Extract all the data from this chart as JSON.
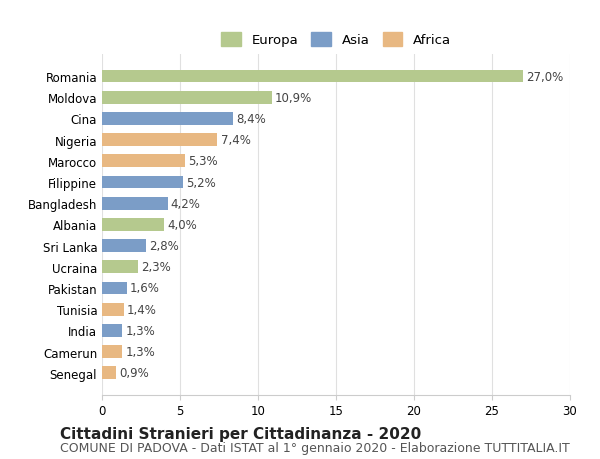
{
  "countries": [
    "Romania",
    "Moldova",
    "Cina",
    "Nigeria",
    "Marocco",
    "Filippine",
    "Bangladesh",
    "Albania",
    "Sri Lanka",
    "Ucraina",
    "Pakistan",
    "Tunisia",
    "India",
    "Camerun",
    "Senegal"
  ],
  "values": [
    27.0,
    10.9,
    8.4,
    7.4,
    5.3,
    5.2,
    4.2,
    4.0,
    2.8,
    2.3,
    1.6,
    1.4,
    1.3,
    1.3,
    0.9
  ],
  "continents": [
    "Europa",
    "Europa",
    "Asia",
    "Africa",
    "Africa",
    "Asia",
    "Asia",
    "Europa",
    "Asia",
    "Europa",
    "Asia",
    "Africa",
    "Asia",
    "Africa",
    "Africa"
  ],
  "colors": {
    "Europa": "#b5c98e",
    "Asia": "#7b9dc7",
    "Africa": "#e8b882"
  },
  "legend_order": [
    "Europa",
    "Asia",
    "Africa"
  ],
  "xlim": [
    0,
    30
  ],
  "xticks": [
    0,
    5,
    10,
    15,
    20,
    25,
    30
  ],
  "title": "Cittadini Stranieri per Cittadinanza - 2020",
  "subtitle": "COMUNE DI PADOVA - Dati ISTAT al 1° gennaio 2020 - Elaborazione TUTTITALIA.IT",
  "title_fontsize": 11,
  "subtitle_fontsize": 9,
  "label_fontsize": 8.5,
  "tick_fontsize": 8.5,
  "legend_fontsize": 9.5,
  "bg_color": "#ffffff",
  "grid_color": "#e0e0e0"
}
